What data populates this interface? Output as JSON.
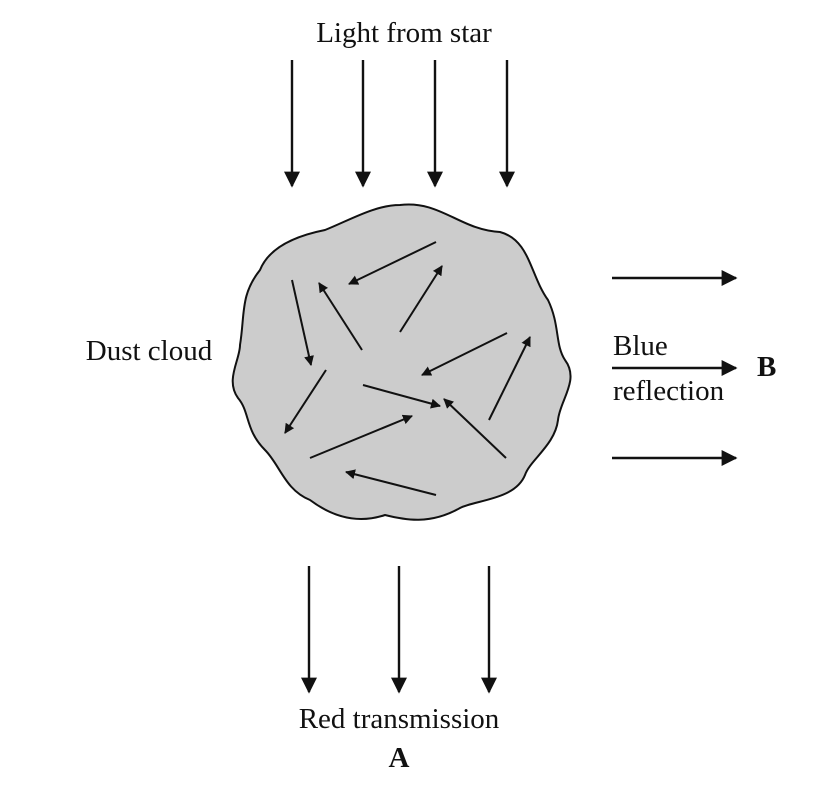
{
  "labels": {
    "top": "Light from star",
    "cloud": "Dust cloud",
    "right_line1": "Blue",
    "right_line2": "reflection",
    "right_marker": "B",
    "bottom": "Red transmission",
    "bottom_marker": "A"
  },
  "colors": {
    "cloud_fill": "#cccccc",
    "stroke": "#111111"
  }
}
